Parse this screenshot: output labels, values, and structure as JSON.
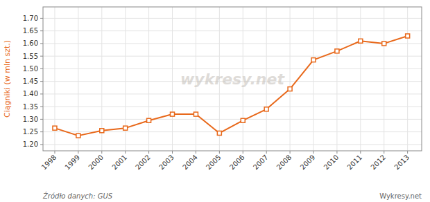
{
  "chart_data": {
    "type": "line",
    "y_label": "Ciągniki (w mln szt.)",
    "x": [
      1998,
      1999,
      2000,
      2001,
      2002,
      2003,
      2004,
      2005,
      2006,
      2007,
      2008,
      2009,
      2010,
      2011,
      2012,
      2013
    ],
    "values": [
      1.265,
      1.235,
      1.255,
      1.265,
      1.295,
      1.32,
      1.32,
      1.245,
      1.295,
      1.34,
      1.42,
      1.535,
      1.57,
      1.61,
      1.6,
      1.63
    ],
    "color": "#e8681a",
    "marker": "square",
    "xlim": [
      1997.5,
      2013.6
    ],
    "xticks": [
      1998,
      1999,
      2000,
      2001,
      2002,
      2003,
      2004,
      2005,
      2006,
      2007,
      2008,
      2009,
      2010,
      2011,
      2012,
      2013
    ],
    "ylim": [
      1.175,
      1.745
    ],
    "yticks": [
      {
        "value": 1.2,
        "label": "1.20"
      },
      1.25,
      {
        "value": 1.3,
        "label": "1.30"
      },
      1.35,
      {
        "value": 1.4,
        "label": "1.40"
      },
      1.45,
      {
        "value": 1.5,
        "label": "1.50"
      },
      1.55,
      {
        "value": 1.6,
        "label": "1.60"
      },
      1.65,
      {
        "value": 1.7,
        "label": "1.70"
      }
    ],
    "grid": true,
    "annotations": [
      "wykresy.net",
      "Źródło danych:  GUS",
      "Wykresy.net"
    ]
  }
}
